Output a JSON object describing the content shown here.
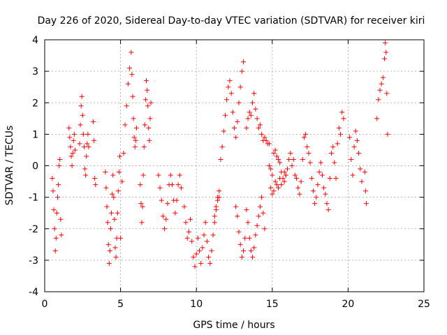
{
  "chart_data": {
    "type": "scatter",
    "title": "Day 226 of 2020, Sidereal Day-to-day VTEC variation (SDTVAR) for receiver kiri",
    "xlabel": "GPS time / hours",
    "ylabel": "SDTVAR / TECUs",
    "xlim": [
      0,
      25
    ],
    "ylim": [
      -4,
      4
    ],
    "xticks": [
      "0",
      "5",
      "10",
      "15",
      "20",
      "25"
    ],
    "yticks": [
      "-4",
      "-3",
      "-2",
      "-1",
      "0",
      "1",
      "2",
      "3",
      "4"
    ],
    "grid": true,
    "marker": "+",
    "series": [
      {
        "name": "SDTVAR",
        "color": "#ff0000",
        "x": [
          0.5,
          0.55,
          0.6,
          0.65,
          0.7,
          0.75,
          0.8,
          0.85,
          0.9,
          0.95,
          1.0,
          1.05,
          1.1,
          1.6,
          1.65,
          1.7,
          1.75,
          1.8,
          1.85,
          1.9,
          1.95,
          2.0,
          2.3,
          2.35,
          2.4,
          2.45,
          2.5,
          2.55,
          2.6,
          2.65,
          2.7,
          2.75,
          2.8,
          2.85,
          2.9,
          3.2,
          3.25,
          3.3,
          3.35,
          4.0,
          4.05,
          4.1,
          4.15,
          4.2,
          4.25,
          4.3,
          4.35,
          4.4,
          4.45,
          4.5,
          4.55,
          4.6,
          4.65,
          4.7,
          4.75,
          4.8,
          4.85,
          4.9,
          4.95,
          5.0,
          5.1,
          5.2,
          5.3,
          5.4,
          5.5,
          5.6,
          5.7,
          5.75,
          5.8,
          5.85,
          5.9,
          5.95,
          6.0,
          6.05,
          6.3,
          6.35,
          6.4,
          6.45,
          6.5,
          6.55,
          6.6,
          6.65,
          6.7,
          6.75,
          6.8,
          6.85,
          6.9,
          6.95,
          7.0,
          7.5,
          7.6,
          7.7,
          7.8,
          7.9,
          8.0,
          8.1,
          8.2,
          8.3,
          8.4,
          8.5,
          8.6,
          8.7,
          8.8,
          8.9,
          9.0,
          9.2,
          9.3,
          9.4,
          9.5,
          9.6,
          9.7,
          9.8,
          9.9,
          10.0,
          10.1,
          10.2,
          10.3,
          10.4,
          10.5,
          10.6,
          10.7,
          10.8,
          10.9,
          11.0,
          11.1,
          11.2,
          11.3,
          11.4,
          11.5,
          11.2,
          11.3,
          11.4,
          11.5,
          11.6,
          11.7,
          11.8,
          11.9,
          12.0,
          12.1,
          12.2,
          12.3,
          12.4,
          12.5,
          12.6,
          12.7,
          12.8,
          12.9,
          13.0,
          13.1,
          12.6,
          12.7,
          12.8,
          12.9,
          13.0,
          13.1,
          13.2,
          13.3,
          13.4,
          13.5,
          13.6,
          13.7,
          13.8,
          13.9,
          14.0,
          14.1,
          14.2,
          14.3,
          14.4,
          14.5,
          14.6,
          14.7,
          14.8,
          13.3,
          13.4,
          13.5,
          13.6,
          13.7,
          13.8,
          13.9,
          14.0,
          14.1,
          14.2,
          14.3,
          14.4,
          14.5,
          14.8,
          14.9,
          15.0,
          15.1,
          15.2,
          15.3,
          15.4,
          15.5,
          15.6,
          15.7,
          15.8,
          15.9,
          16.0,
          16.1,
          16.2,
          14.9,
          15.0,
          15.1,
          15.2,
          15.3,
          15.4,
          15.5,
          15.6,
          15.7,
          15.8,
          15.9,
          16.3,
          16.4,
          16.5,
          16.6,
          16.7,
          16.8,
          16.9,
          17.0,
          17.1,
          17.2,
          17.3,
          17.4,
          17.5,
          17.6,
          17.7,
          17.8,
          17.9,
          18.0,
          18.1,
          18.2,
          18.3,
          18.4,
          18.5,
          18.6,
          18.7,
          18.8,
          18.9,
          19.0,
          19.1,
          19.2,
          19.3,
          19.4,
          19.5,
          19.6,
          19.7,
          20.1,
          20.2,
          20.3,
          20.4,
          20.5,
          20.6,
          20.7,
          20.8,
          20.9,
          21.1,
          21.15,
          21.2,
          21.9,
          22.0,
          22.1,
          22.2,
          22.3,
          22.4,
          22.45,
          22.5,
          22.55,
          22.6
        ],
        "y": [
          -0.4,
          -0.8,
          -1.4,
          -2.0,
          -2.7,
          -2.3,
          -1.5,
          -1.0,
          -0.6,
          0.0,
          0.2,
          -1.7,
          -2.2,
          1.2,
          0.9,
          0.6,
          0.3,
          0.0,
          0.4,
          0.8,
          1.0,
          0.5,
          0.7,
          1.3,
          1.9,
          2.2,
          1.6,
          1.0,
          0.6,
          -0.1,
          -0.3,
          0.3,
          0.7,
          1.0,
          0.6,
          1.4,
          0.8,
          -0.4,
          -0.6,
          -0.2,
          -0.7,
          -1.3,
          -1.8,
          -2.5,
          -3.1,
          -2.7,
          -2.0,
          -1.5,
          -0.9,
          -0.3,
          -1.0,
          -1.7,
          -2.6,
          -2.9,
          -2.3,
          -1.5,
          -0.8,
          -0.2,
          0.3,
          -2.3,
          -0.5,
          0.4,
          1.3,
          1.9,
          2.6,
          3.1,
          3.6,
          2.9,
          2.2,
          1.5,
          0.9,
          0.6,
          0.8,
          1.2,
          -0.6,
          -1.2,
          -1.8,
          -1.3,
          -0.3,
          0.6,
          1.3,
          2.1,
          2.7,
          2.4,
          1.9,
          1.2,
          0.8,
          1.5,
          2.0,
          -0.3,
          -0.7,
          -1.1,
          -1.6,
          -2.0,
          -1.7,
          -1.2,
          -0.6,
          -0.3,
          -0.6,
          -1.1,
          -1.5,
          -1.1,
          -0.6,
          -0.3,
          -0.7,
          -1.3,
          -1.8,
          -2.3,
          -2.1,
          -1.7,
          -2.4,
          -2.9,
          -3.2,
          -2.8,
          -2.3,
          -2.7,
          -3.1,
          -2.6,
          -2.2,
          -1.8,
          -2.4,
          -2.9,
          -3.1,
          -2.7,
          -2.2,
          -1.8,
          -1.4,
          -1.1,
          -1.0,
          -1.6,
          -1.3,
          -1.0,
          -0.8,
          0.2,
          0.6,
          1.1,
          1.6,
          2.1,
          2.5,
          2.7,
          2.3,
          1.7,
          1.2,
          0.9,
          1.4,
          2.0,
          2.5,
          3.0,
          3.3,
          -1.3,
          -1.6,
          -2.1,
          -2.5,
          -2.9,
          -2.7,
          -2.3,
          1.2,
          1.5,
          1.7,
          1.6,
          2.0,
          2.3,
          1.8,
          1.5,
          1.2,
          1.3,
          1.0,
          0.8,
          0.9,
          0.8,
          0.7,
          0.7,
          -1.4,
          -1.8,
          -2.3,
          -2.7,
          -2.9,
          -2.6,
          -2.2,
          -1.9,
          -1.6,
          -1.3,
          -1.0,
          -1.5,
          -2.0,
          0.0,
          -0.1,
          -0.3,
          0.4,
          0.5,
          0.3,
          0.2,
          0.1,
          -0.2,
          -0.4,
          -0.5,
          -0.3,
          -0.1,
          0.2,
          0.4,
          -0.7,
          -0.9,
          -0.8,
          -0.5,
          -0.6,
          -0.7,
          -0.4,
          -0.6,
          -0.4,
          -0.2,
          -0.3,
          0.0,
          0.2,
          -0.3,
          -0.4,
          -0.7,
          -0.9,
          -0.5,
          0.2,
          0.9,
          1.0,
          0.6,
          0.4,
          0.1,
          -0.4,
          -0.8,
          -1.2,
          -1.0,
          -0.6,
          -0.2,
          0.1,
          -0.3,
          -0.7,
          -0.9,
          -1.2,
          -1.4,
          -0.4,
          0.4,
          0.6,
          0.1,
          -0.4,
          0.7,
          1.2,
          1.0,
          1.7,
          1.5,
          0.9,
          0.2,
          -0.3,
          0.6,
          1.1,
          0.8,
          0.4,
          -0.1,
          -0.5,
          -0.2,
          -0.8,
          -1.2,
          1.5,
          2.1,
          2.4,
          2.6,
          2.8,
          3.4,
          3.9,
          3.6,
          2.3,
          1.0
        ]
      }
    ]
  }
}
